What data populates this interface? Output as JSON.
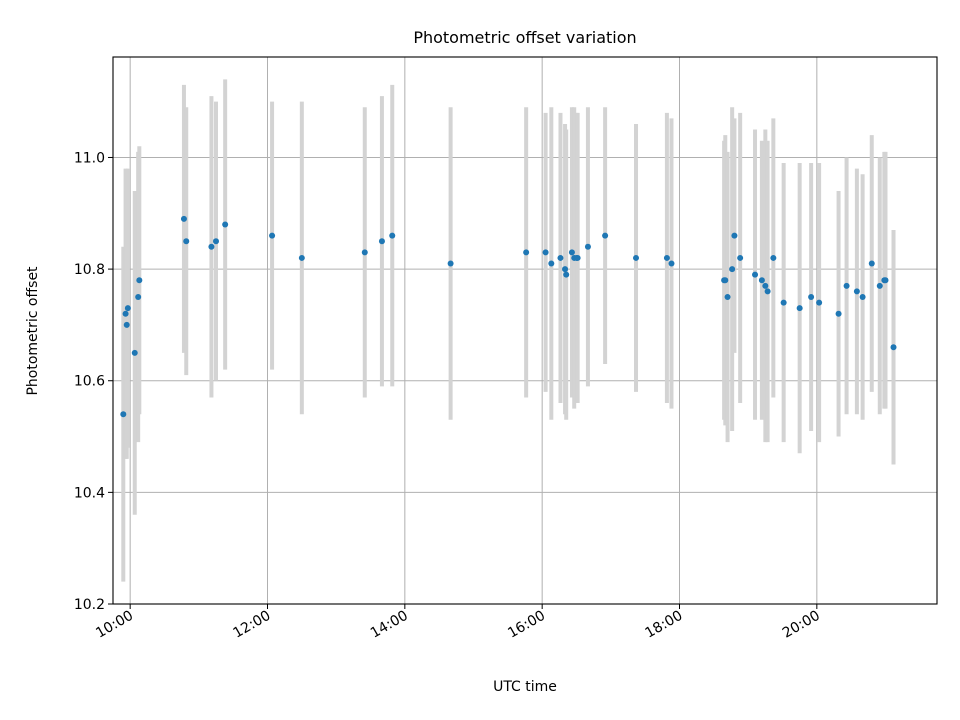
{
  "chart_data": {
    "type": "scatter",
    "title": "Photometric offset variation",
    "xlabel": "UTC time",
    "ylabel": "Photometric offset",
    "x_is_time": true,
    "xlim": [
      "09:45",
      "21:45"
    ],
    "ylim": [
      10.2,
      11.18
    ],
    "x_ticks": [
      "10:00",
      "12:00",
      "14:00",
      "16:00",
      "18:00",
      "20:00"
    ],
    "y_ticks": [
      "10.2",
      "10.4",
      "10.6",
      "10.8",
      "11.0"
    ],
    "grid": true,
    "colors": {
      "point": "#1f77b4",
      "errorbar": "#d3d3d3",
      "grid": "#b0b0b0",
      "axes": "#000000"
    },
    "series": [
      {
        "x": [
          "09:54",
          "09:56",
          "09:57",
          "09:58",
          "10:04",
          "10:07",
          "10:08",
          "10:47",
          "10:49",
          "11:11",
          "11:15",
          "11:23",
          "12:04",
          "12:30",
          "13:25",
          "13:40",
          "13:49",
          "14:40",
          "15:46",
          "16:03",
          "16:08",
          "16:16",
          "16:20",
          "16:21",
          "16:26",
          "16:28",
          "16:30",
          "16:31",
          "16:40",
          "16:55",
          "17:22",
          "17:49",
          "17:53",
          "18:39",
          "18:40",
          "18:42",
          "18:46",
          "18:48",
          "18:53",
          "19:06",
          "19:12",
          "19:15",
          "19:17",
          "19:22",
          "19:31",
          "19:45",
          "19:55",
          "20:02",
          "20:19",
          "20:26",
          "20:35",
          "20:40",
          "20:48",
          "20:55",
          "20:59",
          "21:00",
          "21:07"
        ],
        "y": [
          10.54,
          10.72,
          10.7,
          10.73,
          10.65,
          10.75,
          10.78,
          10.89,
          10.85,
          10.84,
          10.85,
          10.88,
          10.86,
          10.82,
          10.83,
          10.85,
          10.86,
          10.81,
          10.83,
          10.83,
          10.81,
          10.82,
          10.8,
          10.79,
          10.83,
          10.82,
          10.82,
          10.82,
          10.84,
          10.86,
          10.82,
          10.82,
          10.81,
          10.78,
          10.78,
          10.75,
          10.8,
          10.86,
          10.82,
          10.79,
          10.78,
          10.77,
          10.76,
          10.82,
          10.74,
          10.73,
          10.75,
          10.74,
          10.72,
          10.77,
          10.76,
          10.75,
          10.81,
          10.77,
          10.78,
          10.78,
          10.66
        ],
        "yerr": [
          0.3,
          0.26,
          0.24,
          0.25,
          0.29,
          0.26,
          0.24,
          0.24,
          0.24,
          0.27,
          0.25,
          0.26,
          0.24,
          0.28,
          0.26,
          0.26,
          0.27,
          0.28,
          0.26,
          0.25,
          0.28,
          0.26,
          0.26,
          0.26,
          0.26,
          0.27,
          0.26,
          0.26,
          0.25,
          0.23,
          0.24,
          0.26,
          0.26,
          0.25,
          0.26,
          0.26,
          0.29,
          0.21,
          0.26,
          0.26,
          0.25,
          0.28,
          0.27,
          0.25,
          0.25,
          0.26,
          0.24,
          0.25,
          0.22,
          0.23,
          0.22,
          0.22,
          0.23,
          0.23,
          0.23,
          0.23,
          0.21
        ]
      }
    ]
  }
}
